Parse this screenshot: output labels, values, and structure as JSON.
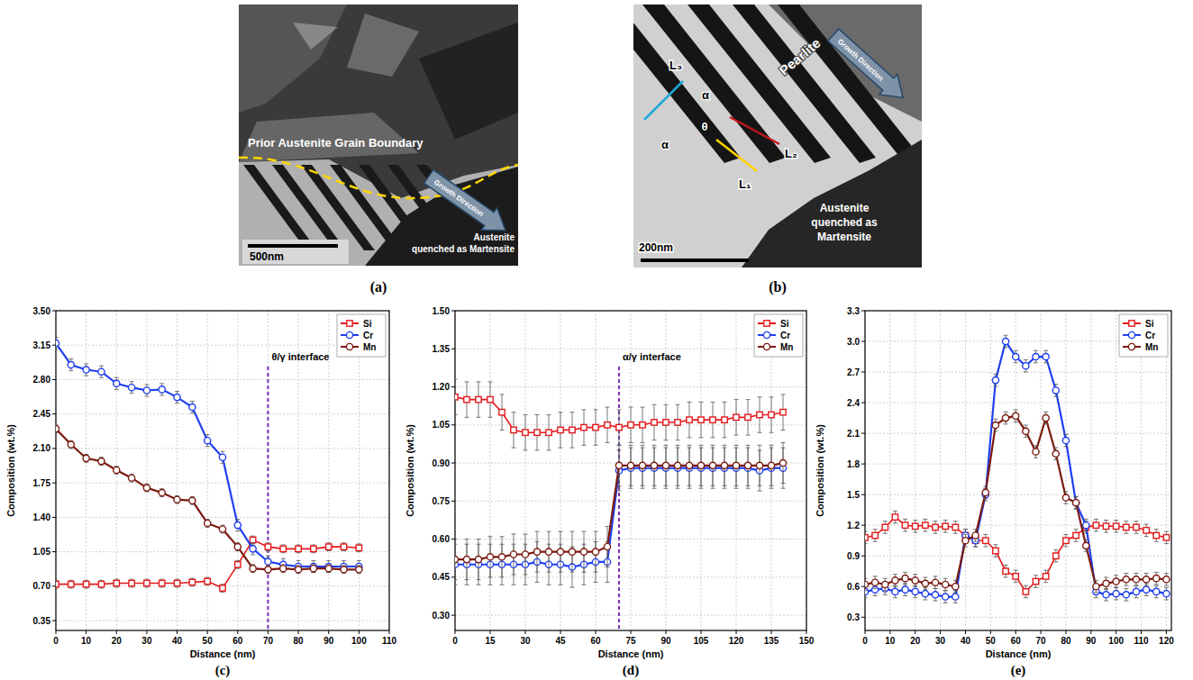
{
  "images": [
    {
      "caption": "(a)",
      "boundary": "Prior Austenite Grain Boundary",
      "growth": "Growth Direction",
      "matrix": [
        "Austenite",
        "quenched as Martensite"
      ],
      "scale_bar": "500nm"
    },
    {
      "caption": "(b)",
      "phase": "Pearlite",
      "growth": "Growth Direction",
      "matrix": [
        "Austenite",
        "quenched as",
        "Martensite"
      ],
      "scale_bar": "200nm",
      "lines": [
        "L₁",
        "L₂",
        "L₃"
      ],
      "phases": [
        "α",
        "θ",
        "α"
      ]
    }
  ],
  "chart_data": [
    {
      "type": "line",
      "caption": "(c)",
      "xlabel": "Distance (nm)",
      "ylabel": "Composition (wt.%)",
      "grid": true,
      "legend": "upper right",
      "x": [
        0,
        5,
        10,
        15,
        20,
        25,
        30,
        35,
        40,
        45,
        50,
        55,
        60,
        65,
        70,
        75,
        80,
        85,
        90,
        95,
        100
      ],
      "xlim": [
        0,
        110
      ],
      "xticks": [
        0,
        10,
        20,
        30,
        40,
        50,
        60,
        70,
        80,
        90,
        100,
        110
      ],
      "ylim": [
        0.25,
        3.5
      ],
      "yticks": [
        0.35,
        {
          "value": 0.7,
          "label": "0.70"
        },
        1.05,
        {
          "value": 1.4,
          "label": "1.40"
        },
        1.75,
        {
          "value": 2.1,
          "label": "2.10"
        },
        2.45,
        {
          "value": 2.8,
          "label": "2.80"
        },
        3.15,
        {
          "value": 3.5,
          "label": "3.50"
        }
      ],
      "series": [
        {
          "name": "Si",
          "color": "#e31a1c",
          "marker": "square",
          "line_style": "solid",
          "values": [
            0.72,
            0.72,
            0.72,
            0.72,
            0.73,
            0.73,
            0.73,
            0.73,
            0.73,
            0.74,
            0.75,
            0.68,
            0.92,
            1.17,
            1.1,
            1.08,
            1.08,
            1.08,
            1.1,
            1.1,
            1.09
          ],
          "errors": [
            0.04,
            0.04,
            0.04,
            0.04,
            0.04,
            0.04,
            0.04,
            0.04,
            0.04,
            0.04,
            0.04,
            0.04,
            0.04,
            0.04,
            0.04,
            0.04,
            0.04,
            0.04,
            0.04,
            0.04,
            0.04
          ]
        },
        {
          "name": "Cr",
          "color": "#1f3ff0",
          "marker": "circle",
          "line_style": "solid",
          "values": [
            3.17,
            2.95,
            2.9,
            2.88,
            2.76,
            2.72,
            2.69,
            2.7,
            2.62,
            2.52,
            2.18,
            2.01,
            1.32,
            1.08,
            0.95,
            0.92,
            0.9,
            0.9,
            0.9,
            0.9,
            0.9
          ],
          "errors": [
            0.06,
            0.06,
            0.06,
            0.06,
            0.06,
            0.06,
            0.06,
            0.06,
            0.06,
            0.06,
            0.06,
            0.06,
            0.06,
            0.06,
            0.06,
            0.06,
            0.06,
            0.06,
            0.06,
            0.06,
            0.06
          ]
        },
        {
          "name": "Mn",
          "color": "#7b1a10",
          "marker": "circle",
          "line_style": "solid",
          "values": [
            2.3,
            2.14,
            2.0,
            1.97,
            1.88,
            1.8,
            1.7,
            1.65,
            1.58,
            1.57,
            1.34,
            1.28,
            1.1,
            0.88,
            0.87,
            0.88,
            0.87,
            0.88,
            0.88,
            0.87,
            0.87
          ],
          "errors": [
            0.04,
            0.04,
            0.04,
            0.04,
            0.04,
            0.04,
            0.04,
            0.04,
            0.04,
            0.04,
            0.04,
            0.04,
            0.04,
            0.04,
            0.04,
            0.04,
            0.04,
            0.04,
            0.04,
            0.04,
            0.04
          ]
        }
      ],
      "annotations": [
        {
          "text": "θ/γ interface",
          "x": 70
        }
      ]
    },
    {
      "type": "line",
      "caption": "(d)",
      "xlabel": "Distance (nm)",
      "ylabel": "Composition (wt.%)",
      "grid": true,
      "legend": "upper right",
      "x": [
        0,
        5,
        10,
        15,
        20,
        25,
        30,
        35,
        40,
        45,
        50,
        55,
        60,
        65,
        70,
        75,
        80,
        85,
        90,
        95,
        100,
        105,
        110,
        115,
        120,
        125,
        130,
        135,
        140
      ],
      "xlim": [
        0,
        150
      ],
      "xticks": [
        0,
        15,
        30,
        45,
        60,
        75,
        90,
        105,
        120,
        135,
        150
      ],
      "ylim": [
        0.24,
        1.5
      ],
      "yticks": [
        {
          "value": 0.3,
          "label": "0.30"
        },
        0.45,
        {
          "value": 0.6,
          "label": "0.60"
        },
        0.75,
        {
          "value": 0.9,
          "label": "0.90"
        },
        1.05,
        {
          "value": 1.2,
          "label": "1.20"
        },
        1.35,
        {
          "value": 1.5,
          "label": "1.50"
        }
      ],
      "series": [
        {
          "name": "Si",
          "color": "#e31a1c",
          "marker": "square",
          "line_style": "solid",
          "values": [
            1.16,
            1.15,
            1.15,
            1.15,
            1.1,
            1.03,
            1.02,
            1.02,
            1.02,
            1.03,
            1.03,
            1.04,
            1.04,
            1.05,
            1.04,
            1.05,
            1.05,
            1.06,
            1.06,
            1.06,
            1.07,
            1.07,
            1.07,
            1.07,
            1.08,
            1.08,
            1.09,
            1.09,
            1.1
          ],
          "errors": [
            0.07,
            0.07,
            0.07,
            0.07,
            0.07,
            0.07,
            0.07,
            0.07,
            0.07,
            0.07,
            0.07,
            0.07,
            0.07,
            0.07,
            0.07,
            0.07,
            0.07,
            0.07,
            0.07,
            0.07,
            0.07,
            0.07,
            0.07,
            0.07,
            0.07,
            0.07,
            0.07,
            0.07,
            0.07
          ]
        },
        {
          "name": "Cr",
          "color": "#1f3ff0",
          "marker": "circle",
          "line_style": "solid",
          "values": [
            0.5,
            0.5,
            0.5,
            0.5,
            0.5,
            0.5,
            0.5,
            0.51,
            0.5,
            0.5,
            0.49,
            0.5,
            0.51,
            0.51,
            0.87,
            0.88,
            0.88,
            0.88,
            0.88,
            0.88,
            0.88,
            0.88,
            0.88,
            0.88,
            0.88,
            0.88,
            0.87,
            0.88,
            0.88
          ],
          "errors": [
            0.08,
            0.08,
            0.08,
            0.08,
            0.08,
            0.08,
            0.08,
            0.08,
            0.08,
            0.08,
            0.08,
            0.08,
            0.08,
            0.08,
            0.08,
            0.08,
            0.08,
            0.08,
            0.08,
            0.08,
            0.08,
            0.08,
            0.08,
            0.08,
            0.08,
            0.08,
            0.08,
            0.08,
            0.08
          ]
        },
        {
          "name": "Mn",
          "color": "#7b1a10",
          "marker": "circle",
          "line_style": "solid",
          "values": [
            0.52,
            0.52,
            0.52,
            0.53,
            0.53,
            0.54,
            0.54,
            0.55,
            0.55,
            0.55,
            0.55,
            0.55,
            0.55,
            0.57,
            0.89,
            0.89,
            0.89,
            0.89,
            0.89,
            0.89,
            0.89,
            0.89,
            0.89,
            0.89,
            0.89,
            0.89,
            0.89,
            0.89,
            0.9
          ],
          "errors": [
            0.08,
            0.08,
            0.08,
            0.08,
            0.08,
            0.08,
            0.08,
            0.08,
            0.08,
            0.08,
            0.08,
            0.08,
            0.08,
            0.08,
            0.08,
            0.08,
            0.08,
            0.08,
            0.08,
            0.08,
            0.08,
            0.08,
            0.08,
            0.08,
            0.08,
            0.08,
            0.08,
            0.08,
            0.08
          ]
        }
      ],
      "annotations": [
        {
          "text": "α/γ interface",
          "x": 70
        }
      ]
    },
    {
      "type": "line",
      "caption": "(e)",
      "xlabel": "Distance (nm)",
      "ylabel": "Composition (wt.%)",
      "grid": true,
      "legend": "upper right",
      "x": [
        0,
        4,
        8,
        12,
        16,
        20,
        24,
        28,
        32,
        36,
        40,
        44,
        48,
        52,
        56,
        60,
        64,
        68,
        72,
        76,
        80,
        84,
        88,
        92,
        96,
        100,
        104,
        108,
        112,
        116,
        120
      ],
      "xlim": [
        0,
        122
      ],
      "xticks": [
        0,
        10,
        20,
        30,
        40,
        50,
        60,
        70,
        80,
        90,
        100,
        110,
        120
      ],
      "ylim": [
        0.17,
        3.3
      ],
      "yticks": [
        0.3,
        0.6,
        0.9,
        1.2,
        1.5,
        1.8,
        2.1,
        2.4,
        2.7,
        {
          "value": 3,
          "label": "3.0"
        },
        3.3
      ],
      "series": [
        {
          "name": "Si",
          "color": "#e31a1c",
          "marker": "square",
          "line_style": "solid",
          "values": [
            1.08,
            1.1,
            1.18,
            1.28,
            1.2,
            1.19,
            1.2,
            1.18,
            1.19,
            1.18,
            1.1,
            1.05,
            1.05,
            0.95,
            0.75,
            0.7,
            0.55,
            0.65,
            0.7,
            0.9,
            1.05,
            1.1,
            1.18,
            1.2,
            1.19,
            1.19,
            1.18,
            1.18,
            1.15,
            1.1,
            1.08
          ],
          "errors": [
            0.06,
            0.06,
            0.06,
            0.06,
            0.06,
            0.06,
            0.06,
            0.06,
            0.06,
            0.06,
            0.06,
            0.06,
            0.06,
            0.06,
            0.06,
            0.06,
            0.06,
            0.06,
            0.06,
            0.06,
            0.06,
            0.06,
            0.06,
            0.06,
            0.06,
            0.06,
            0.06,
            0.06,
            0.06,
            0.06,
            0.06
          ]
        },
        {
          "name": "Cr",
          "color": "#1f3ff0",
          "marker": "circle",
          "line_style": "solid",
          "values": [
            0.55,
            0.57,
            0.58,
            0.55,
            0.57,
            0.55,
            0.53,
            0.52,
            0.5,
            0.5,
            1.1,
            1.05,
            1.5,
            2.62,
            3.0,
            2.85,
            2.76,
            2.85,
            2.85,
            2.52,
            2.03,
            1.42,
            1.2,
            0.55,
            0.52,
            0.53,
            0.52,
            0.55,
            0.57,
            0.55,
            0.53
          ],
          "errors": [
            0.06,
            0.06,
            0.06,
            0.06,
            0.06,
            0.06,
            0.06,
            0.06,
            0.06,
            0.06,
            0.06,
            0.06,
            0.06,
            0.06,
            0.06,
            0.06,
            0.06,
            0.06,
            0.06,
            0.06,
            0.06,
            0.06,
            0.06,
            0.06,
            0.06,
            0.06,
            0.06,
            0.06,
            0.06,
            0.06,
            0.06
          ]
        },
        {
          "name": "Mn",
          "color": "#7b1a10",
          "marker": "circle",
          "line_style": "solid",
          "values": [
            0.62,
            0.64,
            0.62,
            0.66,
            0.68,
            0.66,
            0.63,
            0.64,
            0.62,
            0.6,
            1.05,
            1.1,
            1.52,
            2.18,
            2.25,
            2.27,
            2.12,
            1.92,
            2.25,
            1.9,
            1.47,
            1.42,
            1.0,
            0.6,
            0.63,
            0.65,
            0.67,
            0.67,
            0.67,
            0.68,
            0.67
          ],
          "errors": [
            0.06,
            0.06,
            0.06,
            0.06,
            0.06,
            0.06,
            0.06,
            0.06,
            0.06,
            0.06,
            0.06,
            0.06,
            0.06,
            0.06,
            0.06,
            0.06,
            0.06,
            0.06,
            0.06,
            0.06,
            0.06,
            0.06,
            0.06,
            0.06,
            0.06,
            0.06,
            0.06,
            0.06,
            0.06,
            0.06,
            0.06
          ]
        }
      ]
    }
  ]
}
